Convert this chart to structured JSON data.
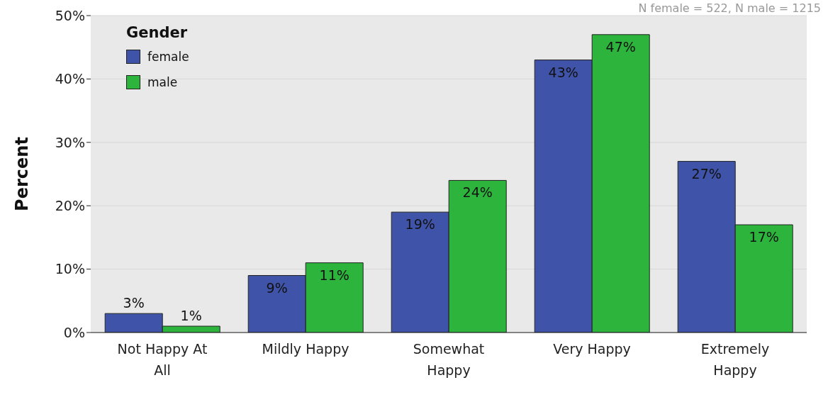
{
  "chart_data": {
    "type": "bar",
    "ylabel": "Percent",
    "legend_title": "Gender",
    "categories": [
      "Not Happy At All",
      "Mildly Happy",
      "Somewhat Happy",
      "Very Happy",
      "Extremely Happy"
    ],
    "series": [
      {
        "name": "female",
        "color": "#3f54a8",
        "values": [
          3,
          9,
          19,
          43,
          27
        ],
        "value_labels": [
          "3%",
          "9%",
          "19%",
          "43%",
          "27%"
        ]
      },
      {
        "name": "male",
        "color": "#2db43c",
        "values": [
          1,
          11,
          24,
          47,
          17
        ],
        "value_labels": [
          "1%",
          "11%",
          "24%",
          "47%",
          "17%"
        ]
      }
    ],
    "ylim": [
      0,
      50
    ],
    "yticks": [
      {
        "value": 0,
        "label": "0%"
      },
      {
        "value": 10,
        "label": "10%"
      },
      {
        "value": 20,
        "label": "20%"
      },
      {
        "value": 30,
        "label": "30%"
      },
      {
        "value": 40,
        "label": "40%"
      },
      {
        "value": 50,
        "label": "50%"
      }
    ],
    "grid": "y",
    "legend": "top left",
    "annotations": [
      "N female = 522, N male = 1215"
    ]
  }
}
